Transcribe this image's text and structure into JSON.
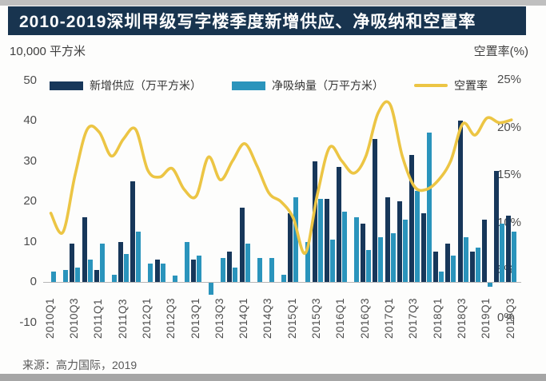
{
  "page": {
    "title": "2010-2019深圳甲级写字楼季度新增供应、净吸纳和空置率",
    "unit_label_left": "10,000 平方米",
    "unit_label_right": "空置率(%)",
    "source": "来源：高力国际，2019"
  },
  "colors": {
    "supply": "#17375a",
    "absorption": "#2a94bc",
    "vacancy_line": "#ecc544",
    "title_bg": "#18344f",
    "title_text": "#ffffff"
  },
  "legend": [
    {
      "label": "新增供应（万平方米）",
      "type": "bar",
      "color": "#17375a"
    },
    {
      "label": "净吸纳量（万平方米）",
      "type": "bar",
      "color": "#2a94bc"
    },
    {
      "label": "空置率",
      "type": "line",
      "color": "#ecc544"
    }
  ],
  "axes": {
    "left_ticks": [
      50,
      40,
      30,
      20,
      10,
      0,
      -10
    ],
    "right_ticks": [
      "25%",
      "20%",
      "15%",
      "10%",
      "5%",
      "0%"
    ],
    "left_range": [
      -10,
      50
    ],
    "right_range_pct": [
      0,
      25
    ],
    "grid": false
  },
  "chart_data": {
    "type": "bar+line",
    "categories": [
      "2010Q1",
      "2010Q2",
      "2010Q3",
      "2010Q4",
      "2011Q1",
      "2011Q2",
      "2011Q3",
      "2011Q4",
      "2012Q1",
      "2012Q2",
      "2012Q3",
      "2012Q4",
      "2013Q1",
      "2013Q2",
      "2013Q3",
      "2013Q4",
      "2014Q1",
      "2014Q2",
      "2014Q3",
      "2014Q4",
      "2015Q1",
      "2015Q2",
      "2015Q3",
      "2015Q4",
      "2016Q1",
      "2016Q2",
      "2016Q3",
      "2016Q4",
      "2017Q1",
      "2017Q2",
      "2017Q3",
      "2017Q4",
      "2018Q1",
      "2018Q2",
      "2018Q3",
      "2018Q4",
      "2019Q1",
      "2019Q2",
      "2019Q3"
    ],
    "x_tick_labels_shown": [
      "2010Q1",
      "2010Q3",
      "2011Q1",
      "2011Q3",
      "2012Q1",
      "2012Q3",
      "2013Q1",
      "2013Q3",
      "2014Q1",
      "2014Q3",
      "2015Q1",
      "2015Q3",
      "2016Q1",
      "2016Q3",
      "2017Q1",
      "2017Q3",
      "2018Q1",
      "2018Q3",
      "2019Q1",
      "2019Q3"
    ],
    "series": [
      {
        "name": "新增供应（万平方米）",
        "axis": "left",
        "values": [
          0,
          0,
          9.5,
          16,
          3,
          0,
          10,
          25,
          0,
          5.5,
          0,
          0,
          5.5,
          0,
          0,
          7.5,
          18.5,
          0,
          0,
          0,
          17,
          0,
          30,
          20.5,
          28.5,
          0,
          14.5,
          35.5,
          21,
          20,
          31.5,
          17,
          7.5,
          9.5,
          40,
          7.5,
          15.5,
          27.5,
          16.5
        ]
      },
      {
        "name": "净吸纳量（万平方米）",
        "axis": "left",
        "values": [
          2.5,
          3,
          3.5,
          5.5,
          9.5,
          1.7,
          7,
          12.5,
          4.5,
          4.5,
          1.5,
          10,
          6.5,
          -3,
          6,
          3.5,
          9.5,
          6,
          6,
          1.8,
          21,
          10,
          20.5,
          10.5,
          17.5,
          16,
          8,
          11,
          12,
          15.5,
          22.5,
          37,
          2.5,
          6.5,
          11,
          8.5,
          -1,
          14.5,
          12.5
        ]
      },
      {
        "name": "空置率",
        "axis": "right",
        "values": [
          11,
          9,
          15,
          19.8,
          19.5,
          17,
          18.8,
          19.8,
          15.5,
          14.8,
          15.7,
          13.5,
          12.8,
          16.9,
          14.5,
          16.5,
          18.3,
          16,
          13.1,
          12.2,
          10.5,
          6.8,
          13,
          17.9,
          16.5,
          15.2,
          17,
          21.5,
          22.4,
          17,
          13.8,
          13.5,
          14.5,
          16.5,
          20.4,
          19.2,
          21,
          20.5,
          20.8
        ]
      }
    ],
    "title": "2010-2019深圳甲级写字楼季度新增供应、净吸纳和空置率",
    "xlabel": "",
    "ylabel_left": "10,000 平方米",
    "ylabel_right": "空置率(%)",
    "ylim_left": [
      -10,
      50
    ],
    "ylim_right_pct": [
      0,
      25
    ],
    "legend_position": "top"
  }
}
